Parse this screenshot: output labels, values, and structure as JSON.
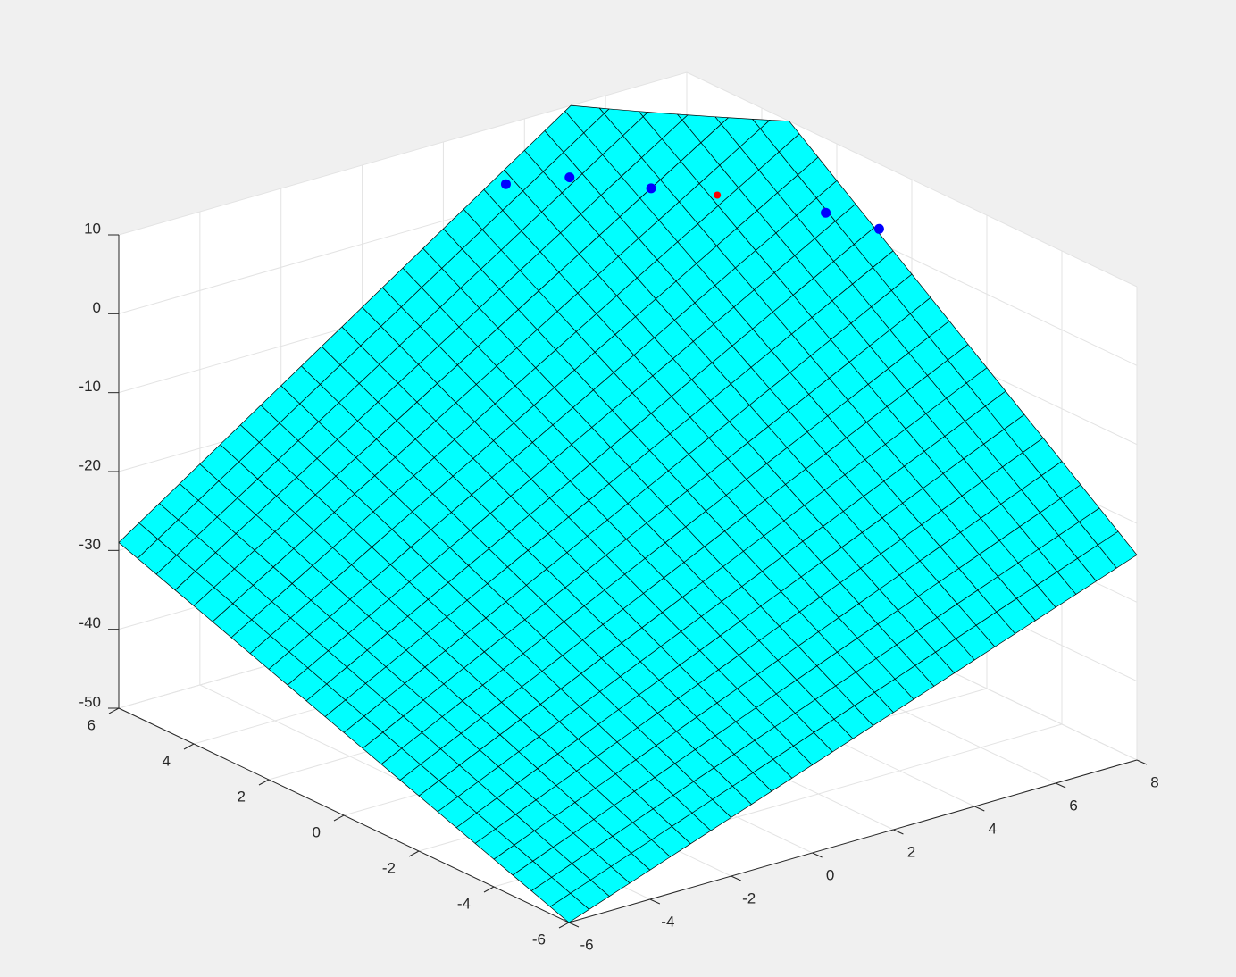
{
  "chart_data": {
    "type": "surface3d",
    "xlim": [
      -6,
      8
    ],
    "ylim": [
      -6,
      6
    ],
    "zlim": [
      -50,
      10
    ],
    "xticks": [
      -6,
      -4,
      -2,
      0,
      2,
      4,
      6,
      8
    ],
    "yticks": [
      -6,
      -4,
      -2,
      0,
      2,
      4,
      6
    ],
    "zticks": [
      -50,
      -40,
      -30,
      -20,
      -10,
      0,
      10
    ],
    "grid": true,
    "surface": {
      "x": [
        -6,
        8
      ],
      "y": [
        -6,
        6
      ],
      "z": [
        [
          -50,
          -24
        ],
        [
          -29,
          20
        ]
      ],
      "color": "#00ffff",
      "edge_color": "#000000",
      "mesh": [
        28,
        24
      ]
    },
    "series": [
      {
        "color": "#0000ff",
        "x": [
          1.6,
          2.8,
          3.7,
          5.6,
          5.9
        ],
        "y": [
          3.9,
          3.5,
          2.3,
          -0.3,
          -1.4
        ],
        "z": [
          10,
          10,
          10,
          10,
          10
        ]
      },
      {
        "color": "#ff0000",
        "x": [
          4.5
        ],
        "y": [
          1.4
        ],
        "z": [
          10
        ]
      }
    ]
  }
}
